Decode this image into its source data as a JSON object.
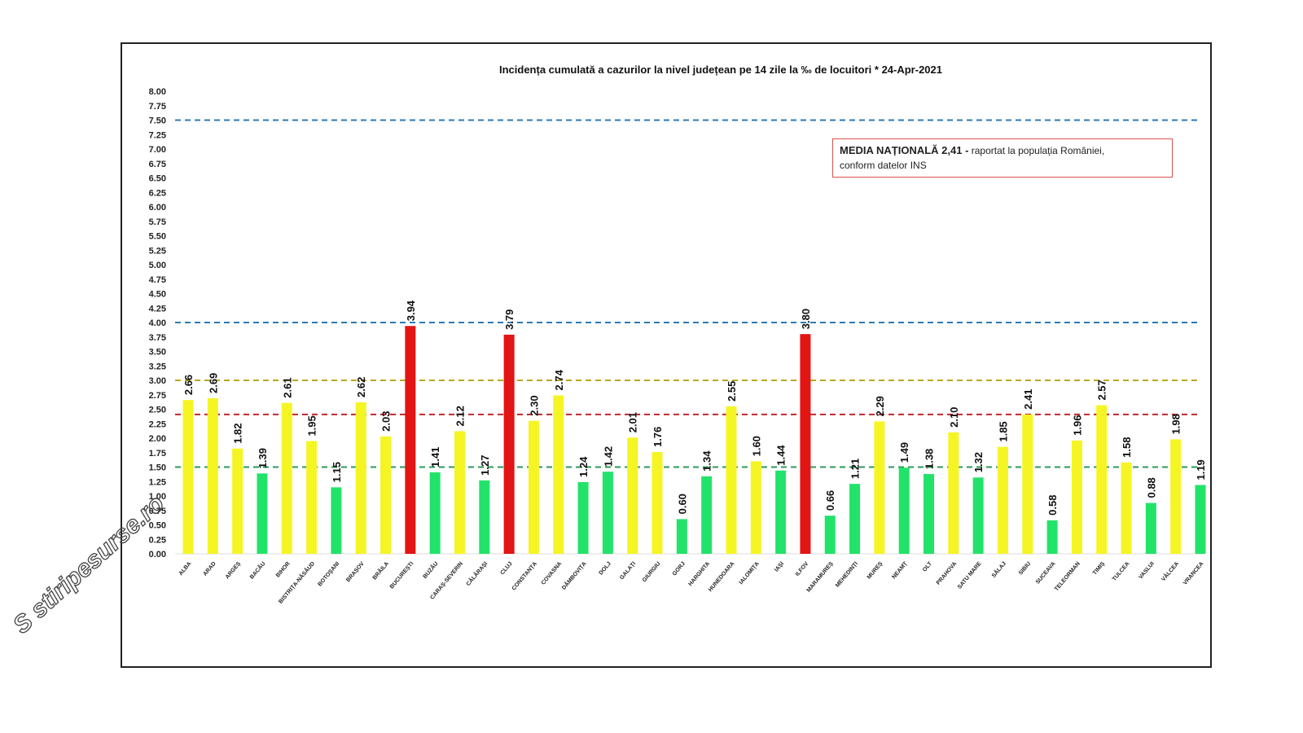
{
  "chart_data": {
    "type": "bar",
    "title": "Incidența cumulată a cazurilor la nivel județean pe 14 zile la ‰ de locuitori *   24-Apr-2021",
    "ylim": [
      0,
      8
    ],
    "yticks": [
      "0.00",
      "0.25",
      "0.50",
      "0.75",
      "1.00",
      "1.25",
      "1.50",
      "1.75",
      "2.00",
      "2.25",
      "2.50",
      "2.75",
      "3.00",
      "3.25",
      "3.50",
      "3.75",
      "4.00",
      "4.25",
      "4.50",
      "4.75",
      "5.00",
      "5.25",
      "5.50",
      "5.75",
      "6.00",
      "6.25",
      "6.50",
      "6.75",
      "7.00",
      "7.25",
      "7.50",
      "7.75",
      "8.00"
    ],
    "grid": false,
    "categories": [
      "ALBA",
      "ARAD",
      "ARGEȘ",
      "BACĂU",
      "BIHOR",
      "BISTRIȚA-NĂSĂUD",
      "BOTOȘANI",
      "BRAȘOV",
      "BRĂILA",
      "BUCUREȘTI",
      "BUZĂU",
      "CARAȘ-SEVERIN",
      "CĂLĂRAȘI",
      "CLUJ",
      "CONSTANȚA",
      "COVASNA",
      "DÂMBOVIȚA",
      "DOLJ",
      "GALAȚI",
      "GIURGIU",
      "GORJ",
      "HARGHITA",
      "HUNEDOARA",
      "IALOMIȚA",
      "IAȘI",
      "ILFOV",
      "MARAMUREȘ",
      "MEHEDINȚI",
      "MUREȘ",
      "NEAMȚ",
      "OLT",
      "PRAHOVA",
      "SATU MARE",
      "SĂLAJ",
      "SIBIU",
      "SUCEAVA",
      "TELEORMAN",
      "TIMIȘ",
      "TULCEA",
      "VASLUI",
      "VÂLCEA",
      "VRANCEA"
    ],
    "values": [
      2.66,
      2.69,
      1.82,
      1.39,
      2.61,
      1.95,
      1.15,
      2.62,
      2.03,
      3.94,
      1.41,
      2.12,
      1.27,
      3.79,
      2.3,
      2.74,
      1.24,
      1.42,
      2.01,
      1.76,
      0.6,
      1.34,
      2.55,
      1.6,
      1.44,
      3.8,
      0.66,
      1.21,
      2.29,
      1.49,
      1.38,
      2.1,
      1.32,
      1.85,
      2.41,
      0.58,
      1.96,
      2.57,
      1.58,
      0.88,
      1.98,
      1.19
    ],
    "value_labels": [
      "2.66",
      "2.69",
      "1.82",
      "1.39",
      "2.61",
      "1.95",
      "1.15",
      "2.62",
      "2.03",
      "3.94",
      "1.41",
      "2.12",
      "1.27",
      "3.79",
      "2.30",
      "2.74",
      "1.24",
      "1.42",
      "2.01",
      "1.76",
      "0.60",
      "1.34",
      "2.55",
      "1.60",
      "1.44",
      "3.80",
      "0.66",
      "1.21",
      "2.29",
      "1.49",
      "1.38",
      "2.10",
      "1.32",
      "1.85",
      "2.41",
      "0.58",
      "1.96",
      "2.57",
      "1.58",
      "0.88",
      "1.98",
      "1.19"
    ],
    "color_rules": {
      "below_1_5": "#22e36a",
      "from_1_5_to_3": "#f5f524",
      "above_3": "#e31414"
    },
    "reference_lines": [
      {
        "value": 7.5,
        "color": "#2a7ab8",
        "style": "dashed"
      },
      {
        "value": 4.0,
        "color": "#2a7ab8",
        "style": "dashed"
      },
      {
        "value": 3.0,
        "color": "#b8a820",
        "style": "dashed"
      },
      {
        "value": 2.41,
        "color": "#c0282d",
        "style": "dashed"
      },
      {
        "value": 1.5,
        "color": "#2a9a5a",
        "style": "dashed"
      }
    ]
  },
  "legend": {
    "bold": "MEDIA NAȚIONALĂ  2,41 -",
    "rest": " raportat la populația României,",
    "line2": "conform datelor INS"
  },
  "watermark": "stiripesurse.ro"
}
